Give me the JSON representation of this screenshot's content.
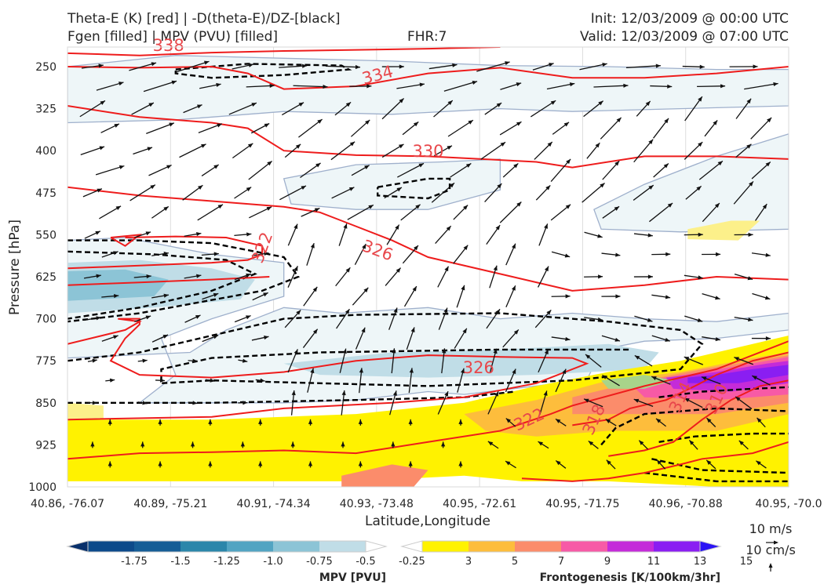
{
  "header": {
    "left_line1": "Theta-E (K) [red] | -D(theta-E)/DZ-[black]",
    "left_line2": "Fgen [filled] | MPV (PVU) [filled]",
    "fhr": "FHR:7",
    "init": "Init: 12/03/2009 @ 00:00 UTC",
    "valid": "Valid: 12/03/2009 @ 07:00 UTC"
  },
  "colors": {
    "theta_e": "#ee1c1c",
    "dthetae": "#000000",
    "mpv_outline": "#9fb0cc",
    "arrows": "#111111"
  },
  "chart_data": {
    "type": "cross-section",
    "xlabel": "Latitude,Longitude",
    "ylabel": "Pressure [hPa]",
    "x_ticks": [
      "40.86, -76.07",
      "40.89, -75.21",
      "40.91, -74.34",
      "40.93, -73.48",
      "40.95, -72.61",
      "40.95, -71.75",
      "40.96, -70.88",
      "40.95, -70.0"
    ],
    "y_ticks": [
      250,
      325,
      400,
      475,
      550,
      625,
      700,
      775,
      850,
      925,
      1000
    ],
    "ylim": [
      1000,
      215
    ],
    "y_inverted": true,
    "theta_e_labels": [
      {
        "text": "338",
        "x": 0.14,
        "p": 212,
        "rot": 0
      },
      {
        "text": "334",
        "x": 0.43,
        "p": 265,
        "rot": -15
      },
      {
        "text": "330",
        "x": 0.5,
        "p": 401,
        "rot": 0
      },
      {
        "text": "326",
        "x": 0.43,
        "p": 578,
        "rot": 20
      },
      {
        "text": "322",
        "x": 0.27,
        "p": 573,
        "rot": -70
      },
      {
        "text": "326",
        "x": 0.57,
        "p": 787,
        "rot": 0
      },
      {
        "text": "322",
        "x": 0.64,
        "p": 880,
        "rot": -25
      },
      {
        "text": "318",
        "x": 0.73,
        "p": 880,
        "rot": -65
      },
      {
        "text": "314",
        "x": 0.85,
        "p": 840,
        "rot": -65
      },
      {
        "text": "310",
        "x": 0.9,
        "p": 843,
        "rot": -65
      }
    ],
    "mpv_colorbar": {
      "title": "MPV [PVU]",
      "levels": [
        -1.75,
        -1.5,
        -1.25,
        -1.0,
        -0.75,
        -0.5,
        -0.25
      ],
      "tick_labels": [
        "-1.75",
        "-1.5",
        "-1.25",
        "-1.0",
        "-0.75",
        "-0.5",
        "-0.25"
      ],
      "colors": [
        "#08306b",
        "#0c4a8a",
        "#155d96",
        "#2b86aa",
        "#52a4c2",
        "#8cc4d6",
        "#c0dde7",
        "#ffffff"
      ]
    },
    "fgen_colorbar": {
      "title": "Frontogenesis [K/100km/3hr]",
      "levels": [
        3,
        5,
        7,
        9,
        11,
        13,
        15
      ],
      "tick_labels": [
        "3",
        "5",
        "7",
        "9",
        "11",
        "13",
        "15"
      ],
      "colors": [
        "#ffffff",
        "#fff200",
        "#fdbd3c",
        "#fb8c6b",
        "#f75aa6",
        "#c42bd9",
        "#8a1ef2",
        "#2b14f5"
      ]
    },
    "vector_key": {
      "horizontal": "10 m/s",
      "vertical": "10 cm/s"
    }
  }
}
